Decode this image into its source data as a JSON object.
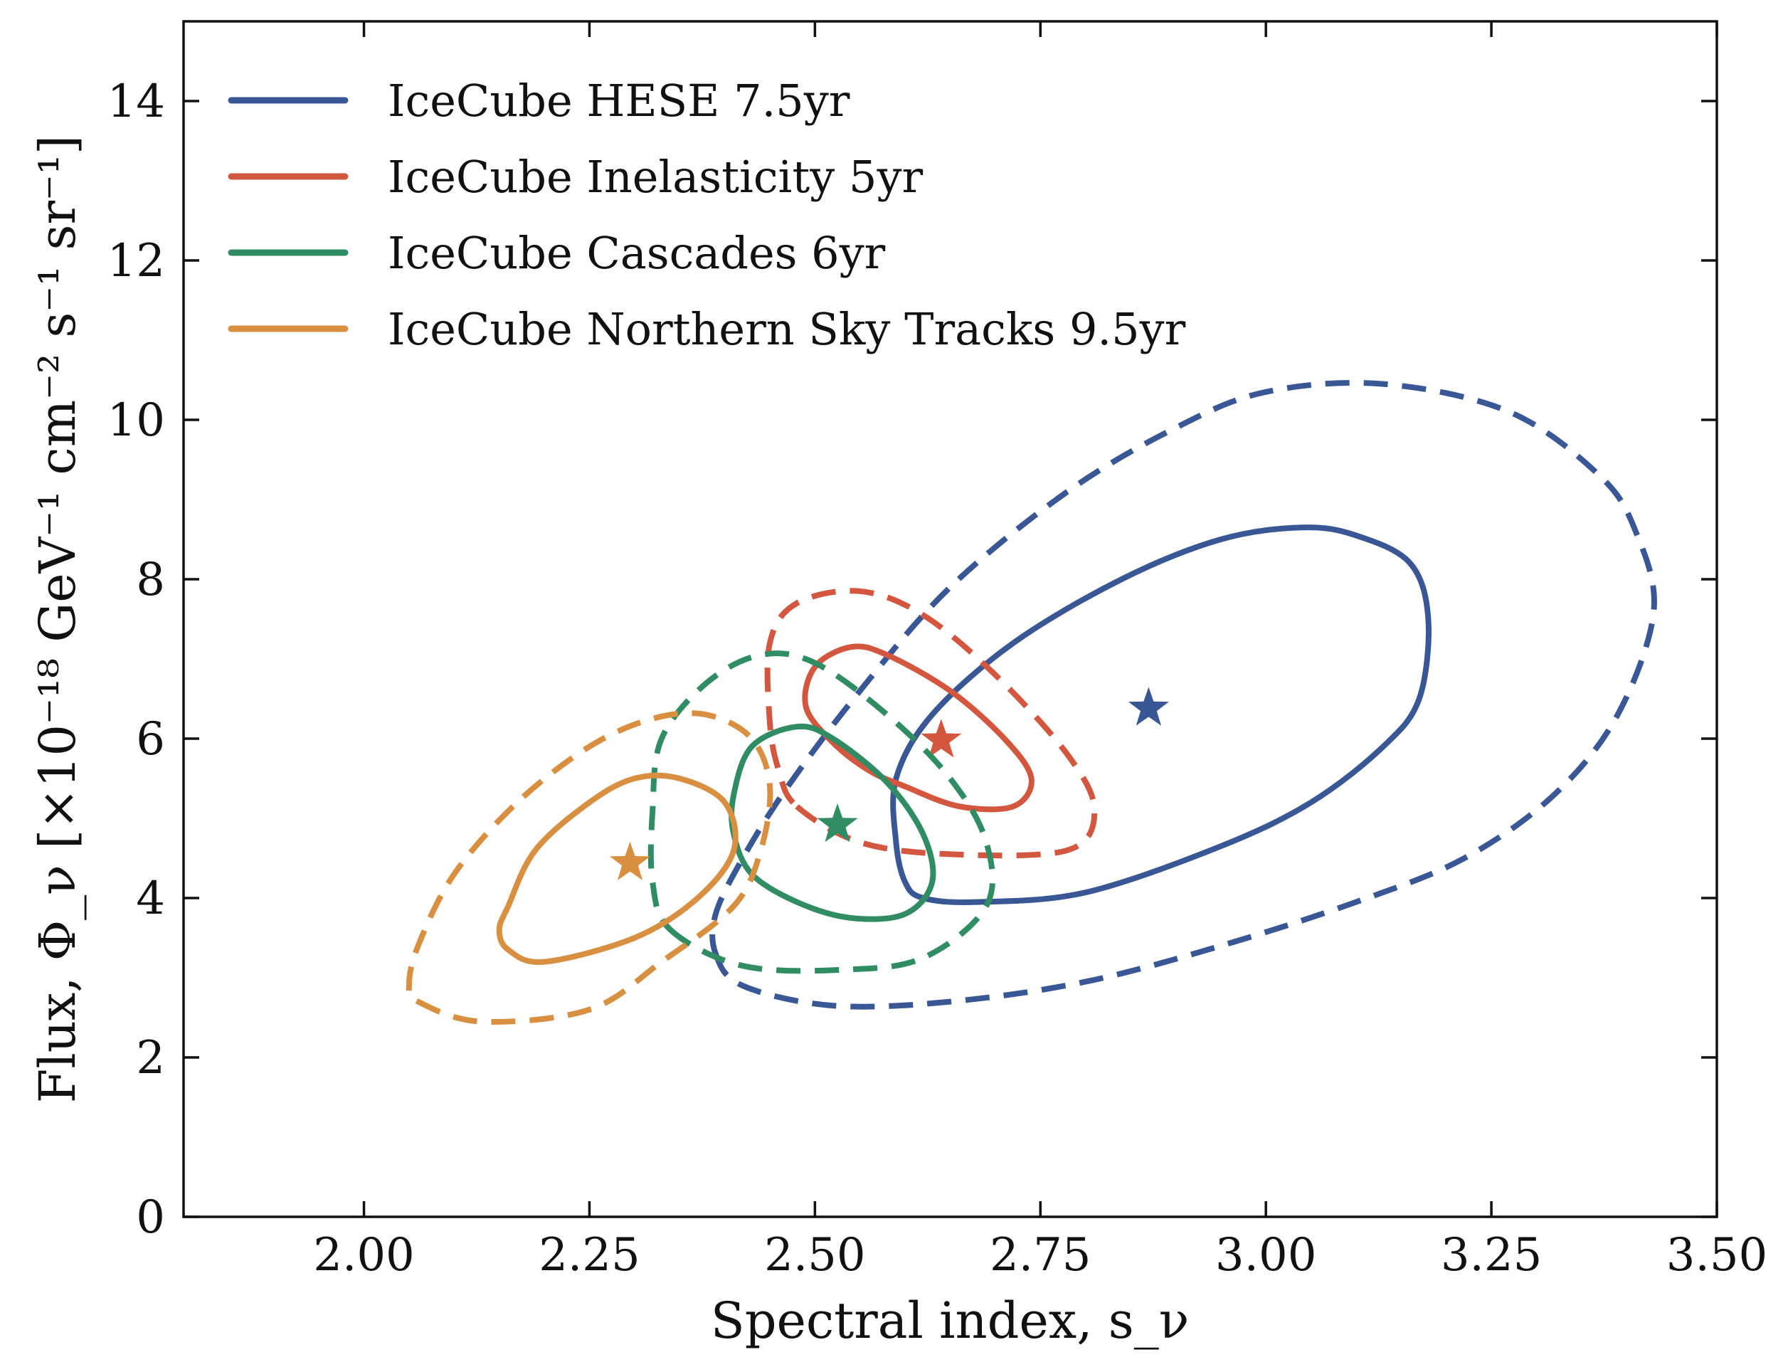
{
  "chart_data": {
    "type": "contour",
    "title": "",
    "xlabel": "Spectral index, s_ν",
    "ylabel": "Flux, Φ_ν [×10⁻¹⁸ GeV⁻¹ cm⁻² s⁻¹ sr⁻¹]",
    "xlim": [
      1.8,
      3.5
    ],
    "ylim": [
      0,
      15
    ],
    "xticks": [
      2.0,
      2.25,
      2.5,
      2.75,
      3.0,
      3.25,
      3.5
    ],
    "xtick_labels": [
      "2.00",
      "2.25",
      "2.50",
      "2.75",
      "3.00",
      "3.25",
      "3.50"
    ],
    "yticks": [
      0,
      2,
      4,
      6,
      8,
      10,
      12,
      14
    ],
    "ytick_labels": [
      "0",
      "2",
      "4",
      "6",
      "8",
      "10",
      "12",
      "14"
    ],
    "legend_position": "top-left",
    "colors": {
      "hese": "#3a5795",
      "inelasticity": "#d3563f",
      "cascades": "#2f8c63",
      "tracks": "#d98f40"
    },
    "series": [
      {
        "name": "IceCube HESE 7.5yr",
        "color": "#3a5795",
        "best_fit": [
          2.87,
          6.38
        ],
        "contour_solid": [
          [
            2.62,
            4.0
          ],
          [
            2.68,
            3.95
          ],
          [
            2.8,
            4.07
          ],
          [
            2.95,
            4.65
          ],
          [
            3.05,
            5.2
          ],
          [
            3.13,
            5.9
          ],
          [
            3.17,
            6.5
          ],
          [
            3.18,
            7.5
          ],
          [
            3.16,
            8.2
          ],
          [
            3.1,
            8.55
          ],
          [
            3.04,
            8.65
          ],
          [
            2.95,
            8.5
          ],
          [
            2.84,
            8.0
          ],
          [
            2.72,
            7.2
          ],
          [
            2.63,
            6.3
          ],
          [
            2.59,
            5.5
          ],
          [
            2.59,
            4.7
          ],
          [
            2.6,
            4.2
          ]
        ],
        "contour_dashed": [
          [
            2.39,
            3.3
          ],
          [
            2.42,
            2.9
          ],
          [
            2.52,
            2.65
          ],
          [
            2.65,
            2.7
          ],
          [
            2.8,
            2.95
          ],
          [
            2.95,
            3.4
          ],
          [
            3.1,
            3.95
          ],
          [
            3.22,
            4.5
          ],
          [
            3.32,
            5.3
          ],
          [
            3.39,
            6.3
          ],
          [
            3.43,
            7.6
          ],
          [
            3.41,
            8.6
          ],
          [
            3.37,
            9.3
          ],
          [
            3.27,
            10.1
          ],
          [
            3.13,
            10.45
          ],
          [
            3.0,
            10.35
          ],
          [
            2.9,
            9.9
          ],
          [
            2.78,
            9.1
          ],
          [
            2.65,
            7.9
          ],
          [
            2.55,
            6.6
          ],
          [
            2.47,
            5.4
          ],
          [
            2.42,
            4.5
          ],
          [
            2.39,
            3.8
          ]
        ]
      },
      {
        "name": "IceCube Inelasticity 5yr",
        "color": "#d3563f",
        "best_fit": [
          2.64,
          5.98
        ],
        "contour_solid": [
          [
            2.6,
            5.4
          ],
          [
            2.66,
            5.15
          ],
          [
            2.72,
            5.15
          ],
          [
            2.74,
            5.5
          ],
          [
            2.71,
            6.0
          ],
          [
            2.65,
            6.6
          ],
          [
            2.58,
            7.05
          ],
          [
            2.54,
            7.15
          ],
          [
            2.5,
            6.9
          ],
          [
            2.49,
            6.4
          ],
          [
            2.52,
            5.95
          ],
          [
            2.56,
            5.6
          ]
        ],
        "contour_dashed": [
          [
            2.48,
            5.15
          ],
          [
            2.55,
            4.7
          ],
          [
            2.65,
            4.55
          ],
          [
            2.78,
            4.6
          ],
          [
            2.81,
            5.1
          ],
          [
            2.78,
            5.8
          ],
          [
            2.7,
            6.8
          ],
          [
            2.62,
            7.55
          ],
          [
            2.55,
            7.85
          ],
          [
            2.48,
            7.7
          ],
          [
            2.45,
            7.2
          ],
          [
            2.45,
            6.2
          ],
          [
            2.46,
            5.6
          ]
        ]
      },
      {
        "name": "IceCube Cascades 6yr",
        "color": "#2f8c63",
        "best_fit": [
          2.525,
          4.92
        ],
        "contour_solid": [
          [
            2.43,
            4.3
          ],
          [
            2.48,
            3.95
          ],
          [
            2.54,
            3.75
          ],
          [
            2.6,
            3.8
          ],
          [
            2.63,
            4.2
          ],
          [
            2.62,
            4.8
          ],
          [
            2.58,
            5.45
          ],
          [
            2.52,
            6.0
          ],
          [
            2.48,
            6.15
          ],
          [
            2.43,
            5.9
          ],
          [
            2.41,
            5.3
          ],
          [
            2.41,
            4.8
          ]
        ],
        "contour_dashed": [
          [
            2.34,
            3.6
          ],
          [
            2.42,
            3.15
          ],
          [
            2.53,
            3.1
          ],
          [
            2.62,
            3.25
          ],
          [
            2.69,
            3.9
          ],
          [
            2.69,
            4.7
          ],
          [
            2.65,
            5.5
          ],
          [
            2.58,
            6.3
          ],
          [
            2.5,
            6.95
          ],
          [
            2.44,
            7.05
          ],
          [
            2.38,
            6.7
          ],
          [
            2.33,
            6.0
          ],
          [
            2.32,
            5.1
          ],
          [
            2.32,
            4.2
          ]
        ]
      },
      {
        "name": "IceCube Northern Sky Tracks 9.5yr",
        "color": "#d98f40",
        "best_fit": [
          2.295,
          4.44
        ],
        "contour_solid": [
          [
            2.16,
            3.35
          ],
          [
            2.2,
            3.2
          ],
          [
            2.3,
            3.5
          ],
          [
            2.37,
            4.0
          ],
          [
            2.41,
            4.6
          ],
          [
            2.4,
            5.2
          ],
          [
            2.35,
            5.5
          ],
          [
            2.3,
            5.5
          ],
          [
            2.25,
            5.2
          ],
          [
            2.19,
            4.6
          ],
          [
            2.16,
            3.9
          ],
          [
            2.15,
            3.6
          ]
        ],
        "contour_dashed": [
          [
            2.06,
            2.7
          ],
          [
            2.13,
            2.45
          ],
          [
            2.25,
            2.6
          ],
          [
            2.33,
            3.2
          ],
          [
            2.41,
            3.9
          ],
          [
            2.44,
            4.6
          ],
          [
            2.45,
            5.4
          ],
          [
            2.43,
            6.0
          ],
          [
            2.38,
            6.3
          ],
          [
            2.32,
            6.25
          ],
          [
            2.25,
            5.9
          ],
          [
            2.17,
            5.2
          ],
          [
            2.1,
            4.3
          ],
          [
            2.06,
            3.4
          ],
          [
            2.05,
            2.9
          ]
        ]
      }
    ]
  }
}
